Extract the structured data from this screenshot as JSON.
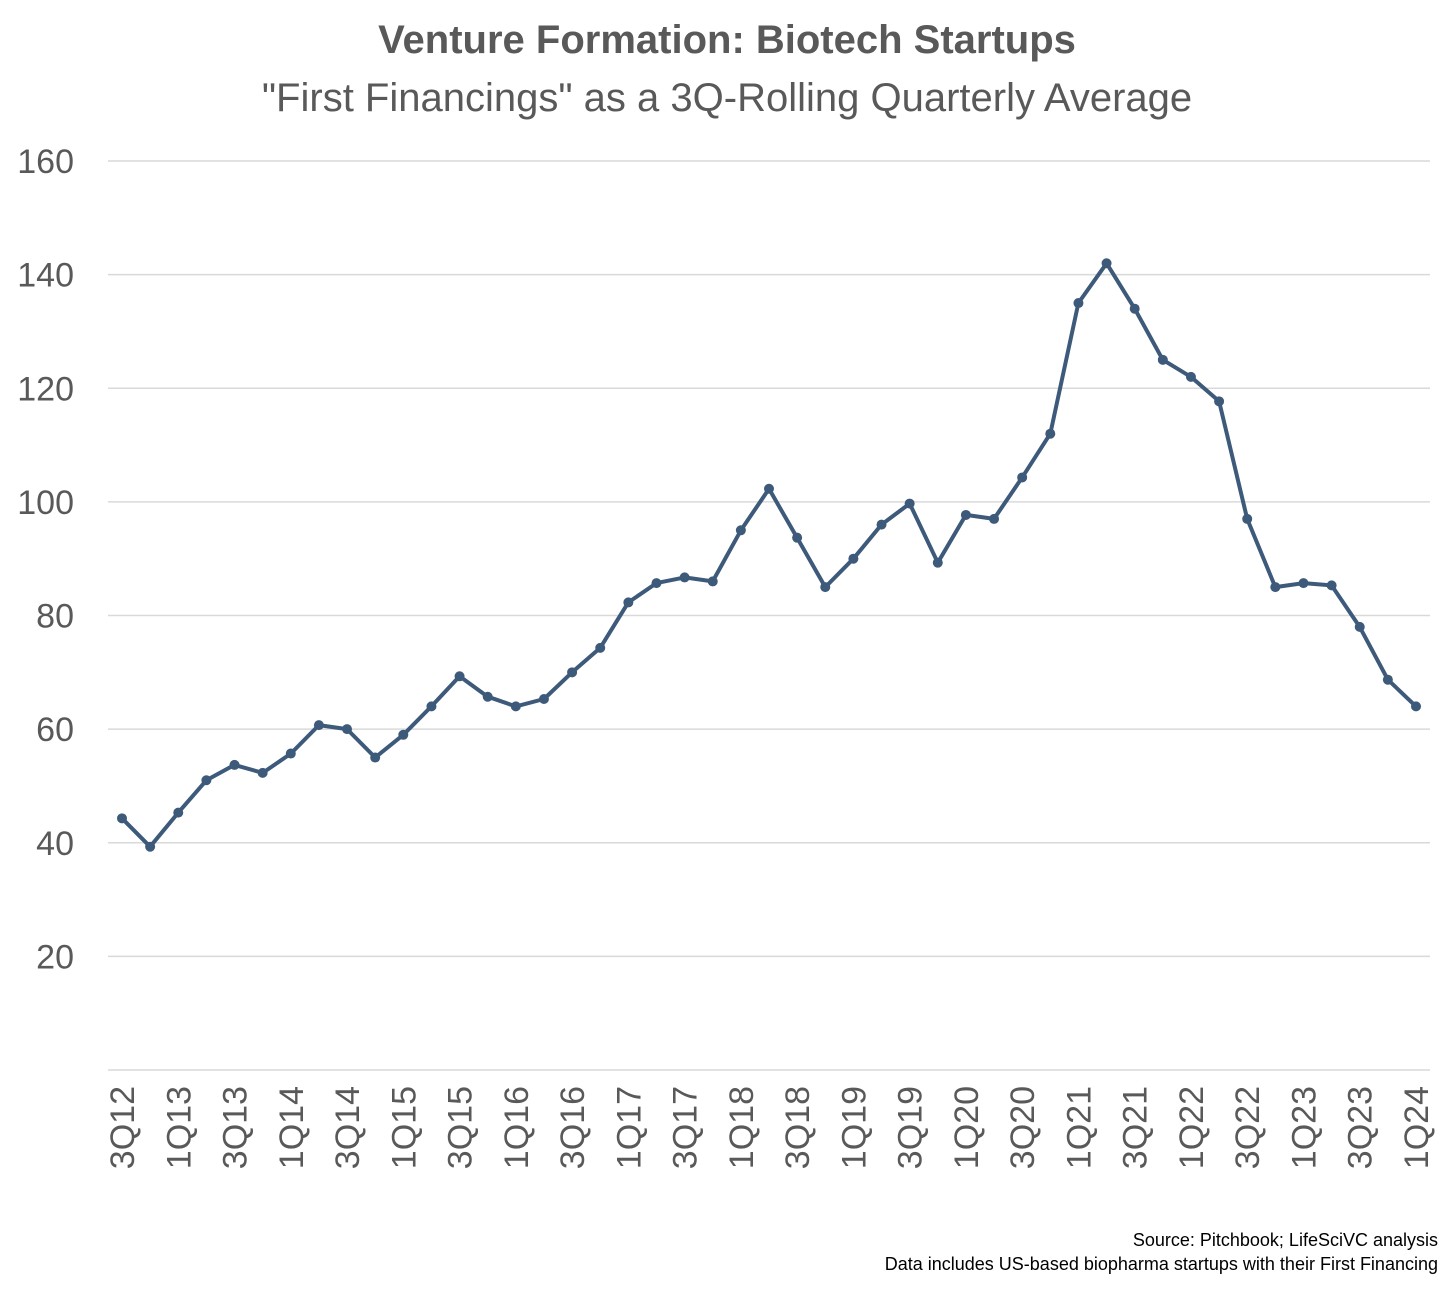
{
  "chart_data": {
    "type": "line",
    "title": "Venture Formation: Biotech Startups",
    "subtitle": "\"First Financings\" as a 3Q-Rolling Quarterly Average",
    "xlabel": "",
    "ylabel": "",
    "ylim": [
      0,
      160
    ],
    "yticks": [
      20,
      40,
      60,
      80,
      100,
      120,
      140,
      160
    ],
    "grid": true,
    "legend": "none",
    "line_color": "#3d5a7a",
    "x": [
      "3Q12",
      "4Q12",
      "1Q13",
      "2Q13",
      "3Q13",
      "4Q13",
      "1Q14",
      "2Q14",
      "3Q14",
      "4Q14",
      "1Q15",
      "2Q15",
      "3Q15",
      "4Q15",
      "1Q16",
      "2Q16",
      "3Q16",
      "4Q16",
      "1Q17",
      "2Q17",
      "3Q17",
      "4Q17",
      "1Q18",
      "2Q18",
      "3Q18",
      "4Q18",
      "1Q19",
      "2Q19",
      "3Q19",
      "4Q19",
      "1Q20",
      "2Q20",
      "3Q20",
      "4Q20",
      "1Q21",
      "2Q21",
      "3Q21",
      "4Q21",
      "1Q22",
      "2Q22",
      "3Q22",
      "4Q22",
      "1Q23",
      "2Q23",
      "3Q23",
      "4Q23",
      "1Q24"
    ],
    "x_tick_labels": [
      "3Q12",
      "1Q13",
      "3Q13",
      "1Q14",
      "3Q14",
      "1Q15",
      "3Q15",
      "1Q16",
      "3Q16",
      "1Q17",
      "3Q17",
      "1Q18",
      "3Q18",
      "1Q19",
      "3Q19",
      "1Q20",
      "3Q20",
      "1Q21",
      "3Q21",
      "1Q22",
      "3Q22",
      "1Q23",
      "3Q23",
      "1Q24"
    ],
    "series": [
      {
        "values": [
          44.3,
          39.3,
          45.3,
          51.0,
          53.7,
          52.3,
          55.7,
          60.7,
          60.0,
          55.0,
          59.0,
          64.0,
          69.3,
          65.7,
          64.0,
          65.3,
          70.0,
          74.3,
          82.3,
          85.7,
          86.7,
          86.0,
          95.0,
          102.3,
          93.7,
          85.0,
          90.0,
          96.0,
          99.7,
          89.3,
          97.7,
          97.0,
          104.3,
          112.0,
          135.0,
          142.0,
          134.0,
          125.0,
          122.0,
          117.7,
          97.0,
          85.0,
          85.7,
          85.3,
          78.0,
          68.7,
          64.0
        ]
      }
    ]
  },
  "footer": {
    "source_line": "Source: Pitchbook; LifeSciVC analysis",
    "note_line": "Data includes US-based biopharma startups with their First Financing"
  }
}
